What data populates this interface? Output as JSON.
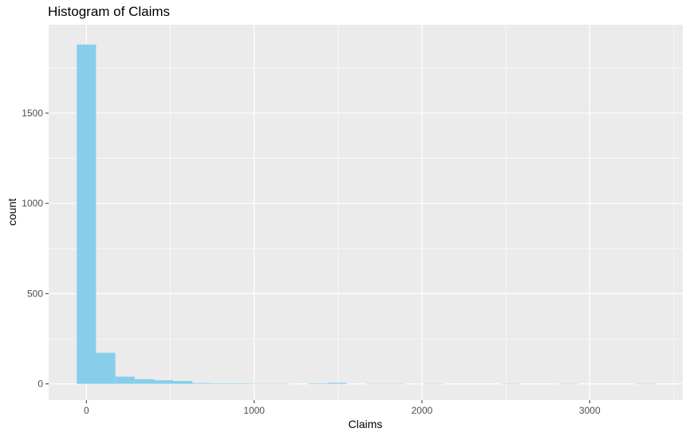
{
  "chart_data": {
    "type": "bar",
    "title": "Histogram of Claims",
    "xlabel": "Claims",
    "ylabel": "count",
    "xlim": [
      -225,
      3555
    ],
    "ylim": [
      -90,
      1990
    ],
    "x_ticks": [
      0,
      1000,
      2000,
      3000
    ],
    "x_tick_labels": [
      "0",
      "1000",
      "2000",
      "3000"
    ],
    "y_ticks": [
      0,
      500,
      1000,
      1500
    ],
    "y_tick_labels": [
      "0",
      "500",
      "1000",
      "1500"
    ],
    "bin_width": 115,
    "bins": [
      {
        "center": 0,
        "count": 1880
      },
      {
        "center": 115,
        "count": 172
      },
      {
        "center": 230,
        "count": 40
      },
      {
        "center": 345,
        "count": 26
      },
      {
        "center": 460,
        "count": 20
      },
      {
        "center": 575,
        "count": 16
      },
      {
        "center": 690,
        "count": 4
      },
      {
        "center": 805,
        "count": 3
      },
      {
        "center": 920,
        "count": 3
      },
      {
        "center": 1035,
        "count": 2
      },
      {
        "center": 1150,
        "count": 2
      },
      {
        "center": 1265,
        "count": 0
      },
      {
        "center": 1380,
        "count": 3
      },
      {
        "center": 1495,
        "count": 6
      },
      {
        "center": 1610,
        "count": 0
      },
      {
        "center": 1725,
        "count": 2
      },
      {
        "center": 1840,
        "count": 2
      },
      {
        "center": 1955,
        "count": 0
      },
      {
        "center": 2070,
        "count": 2
      },
      {
        "center": 2185,
        "count": 0
      },
      {
        "center": 2300,
        "count": 0
      },
      {
        "center": 2415,
        "count": 0
      },
      {
        "center": 2530,
        "count": 2
      },
      {
        "center": 2645,
        "count": 0
      },
      {
        "center": 2760,
        "count": 0
      },
      {
        "center": 2875,
        "count": 2
      },
      {
        "center": 2990,
        "count": 0
      },
      {
        "center": 3105,
        "count": 0
      },
      {
        "center": 3220,
        "count": 0
      },
      {
        "center": 3335,
        "count": 2
      }
    ],
    "grid": true,
    "fill_color": "#87CEEB",
    "panel_color": "#EBEBEB",
    "grid_color": "#FFFFFF"
  }
}
